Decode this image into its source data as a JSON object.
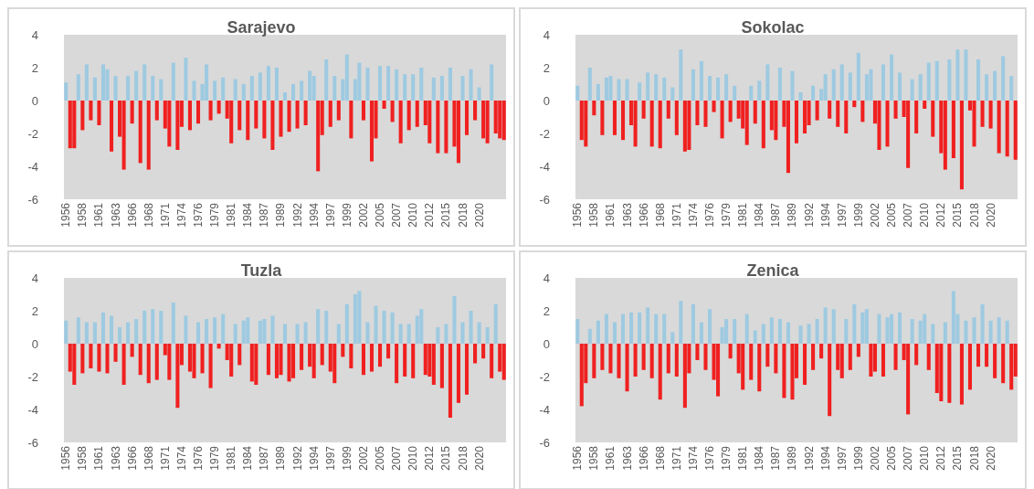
{
  "chart_data": [
    {
      "type": "bar",
      "title": "Sarajevo",
      "categories": [
        "1956",
        null,
        null,
        null,
        "1958",
        null,
        null,
        null,
        "1961",
        null,
        null,
        null,
        "1963",
        null,
        null,
        null,
        "1966",
        null,
        null,
        null,
        "1968",
        null,
        null,
        null,
        "1971",
        null,
        null,
        null,
        "1974",
        null,
        null,
        null,
        "1976",
        null,
        null,
        null,
        "1979",
        null,
        null,
        null,
        "1981",
        null,
        null,
        null,
        "1984",
        null,
        null,
        null,
        "1987",
        null,
        null,
        null,
        "1989",
        null,
        null,
        null,
        "1992",
        null,
        null,
        null,
        "1994",
        null,
        null,
        null,
        "1997",
        null,
        null,
        null,
        "1999",
        null,
        null,
        null,
        "2002",
        null,
        null,
        null,
        "2005",
        null,
        null,
        null,
        "2007",
        null,
        null,
        null,
        "2010",
        null,
        null,
        null,
        "2012",
        null,
        null,
        null,
        "2015",
        null,
        null,
        null,
        "2018",
        null,
        null,
        null,
        "2020",
        null,
        null,
        null,
        null,
        null,
        null
      ],
      "series": [
        {
          "color": "#9ecae1",
          "values": [
            1.1,
            null,
            null,
            1.6,
            null,
            2.2,
            null,
            1.4,
            null,
            2.2,
            1.9,
            null,
            1.5,
            null,
            null,
            1.5,
            null,
            1.8,
            null,
            2.2,
            null,
            1.5,
            null,
            1.3,
            null,
            null,
            2.3,
            null,
            null,
            2.6,
            null,
            1.2,
            null,
            1.0,
            2.2,
            null,
            1.2,
            null,
            1.4,
            null,
            null,
            1.3,
            null,
            1.0,
            null,
            1.5,
            null,
            1.7,
            null,
            2.1,
            null,
            2.0,
            null,
            0.5,
            null,
            1.0,
            null,
            1.2,
            null,
            1.8,
            1.5,
            null,
            null,
            2.5,
            null,
            1.5,
            null,
            1.3,
            2.8,
            null,
            1.3,
            2.3,
            null,
            2.0,
            null,
            null,
            2.1,
            null,
            2.1,
            null,
            1.9,
            null,
            1.6,
            null,
            1.6,
            null,
            2.0,
            null,
            null,
            1.4,
            null,
            1.5,
            null,
            2.0,
            null,
            null,
            1.5,
            null,
            1.9,
            null,
            0.8,
            null,
            null,
            2.2,
            null,
            null,
            null
          ]
        },
        {
          "color": "#f02020",
          "values": [
            null,
            -2.9,
            -2.9,
            null,
            -1.8,
            null,
            -1.2,
            null,
            -1.5,
            null,
            null,
            -3.1,
            null,
            -2.2,
            -4.2,
            null,
            -1.4,
            null,
            -3.8,
            null,
            -4.2,
            null,
            -1.2,
            null,
            -1.7,
            -2.8,
            null,
            -3.0,
            -1.6,
            null,
            -1.8,
            null,
            -1.4,
            null,
            null,
            -1.2,
            null,
            -0.8,
            null,
            -1.1,
            -2.6,
            null,
            -1.8,
            null,
            -2.4,
            null,
            -1.7,
            null,
            -2.3,
            null,
            -3.0,
            null,
            -2.2,
            null,
            -1.9,
            null,
            -1.7,
            null,
            -1.5,
            null,
            null,
            -4.3,
            -2.1,
            null,
            -1.6,
            null,
            -1.2,
            null,
            null,
            -2.3,
            null,
            null,
            -1.2,
            null,
            -3.7,
            -2.3,
            null,
            -0.5,
            null,
            -1.3,
            null,
            -2.6,
            null,
            -1.8,
            null,
            -1.6,
            null,
            -1.5,
            -2.6,
            null,
            -3.2,
            null,
            -3.2,
            null,
            -2.8,
            -3.8,
            null,
            -2.1,
            null,
            -1.2,
            null,
            -2.3,
            -2.6,
            null,
            -2.0,
            -2.3,
            -2.4
          ]
        }
      ],
      "ylim": [
        -6,
        4
      ],
      "yticks": [
        -6,
        -4,
        -2,
        0,
        2,
        4
      ]
    },
    {
      "type": "bar",
      "title": "Sokolac",
      "categories": [
        "1956",
        null,
        null,
        null,
        "1958",
        null,
        null,
        null,
        "1961",
        null,
        null,
        null,
        "1963",
        null,
        null,
        null,
        "1966",
        null,
        null,
        null,
        "1968",
        null,
        null,
        null,
        "1971",
        null,
        null,
        null,
        "1974",
        null,
        null,
        null,
        "1976",
        null,
        null,
        null,
        "1979",
        null,
        null,
        null,
        "1981",
        null,
        null,
        null,
        "1984",
        null,
        null,
        null,
        "1987",
        null,
        null,
        null,
        "1989",
        null,
        null,
        null,
        "1992",
        null,
        null,
        null,
        "1994",
        null,
        null,
        null,
        "1997",
        null,
        null,
        null,
        "1999",
        null,
        null,
        null,
        "2002",
        null,
        null,
        null,
        "2005",
        null,
        null,
        null,
        "2007",
        null,
        null,
        null,
        "2010",
        null,
        null,
        null,
        "2012",
        null,
        null,
        null,
        "2015",
        null,
        null,
        null,
        "2018",
        null,
        null,
        null,
        "2020",
        null,
        null,
        null,
        null,
        null,
        null
      ],
      "series": [
        {
          "color": "#9ecae1",
          "values": [
            0.9,
            null,
            null,
            2.0,
            null,
            1.0,
            null,
            1.4,
            1.5,
            null,
            1.3,
            null,
            1.3,
            null,
            null,
            1.1,
            null,
            1.7,
            null,
            1.6,
            null,
            1.4,
            null,
            0.8,
            null,
            3.1,
            null,
            null,
            1.9,
            null,
            2.4,
            null,
            1.5,
            null,
            1.4,
            null,
            1.6,
            null,
            0.9,
            null,
            null,
            null,
            0.9,
            null,
            1.2,
            null,
            2.2,
            null,
            null,
            2.0,
            null,
            null,
            1.8,
            null,
            0.5,
            null,
            null,
            0.9,
            null,
            0.7,
            1.6,
            null,
            1.9,
            null,
            2.2,
            null,
            1.7,
            null,
            2.9,
            null,
            1.6,
            1.9,
            null,
            null,
            2.2,
            null,
            2.8,
            null,
            1.7,
            null,
            null,
            1.3,
            null,
            1.6,
            null,
            2.3,
            null,
            2.4,
            null,
            null,
            2.5,
            null,
            3.1,
            null,
            3.1,
            null,
            null,
            2.5,
            null,
            1.6,
            null,
            1.8,
            null,
            2.7,
            null,
            1.5,
            null
          ]
        },
        {
          "color": "#f02020",
          "values": [
            null,
            -2.4,
            -2.8,
            null,
            -0.9,
            null,
            -2.1,
            null,
            null,
            -2.1,
            null,
            -2.4,
            null,
            -1.5,
            -2.8,
            null,
            -1.1,
            null,
            -2.8,
            null,
            -2.9,
            null,
            -1.1,
            null,
            -2.1,
            null,
            -3.1,
            -3.0,
            null,
            -1.5,
            null,
            -1.6,
            null,
            -0.7,
            null,
            -2.3,
            null,
            -1.3,
            null,
            -1.1,
            -1.7,
            -2.7,
            null,
            -1.4,
            null,
            -2.9,
            null,
            -1.8,
            -2.4,
            null,
            -1.6,
            -4.4,
            null,
            -2.6,
            null,
            -2.0,
            -1.5,
            null,
            -1.2,
            null,
            null,
            -1.1,
            null,
            -1.6,
            null,
            -2.0,
            null,
            -0.4,
            null,
            -1.3,
            null,
            null,
            -1.4,
            -3.0,
            null,
            -2.8,
            null,
            -1.1,
            null,
            -1.0,
            -4.1,
            null,
            -2.0,
            null,
            -0.5,
            null,
            -2.2,
            null,
            -3.2,
            -4.2,
            null,
            -3.5,
            null,
            -5.4,
            null,
            -0.6,
            -2.8,
            null,
            -1.6,
            null,
            -1.7,
            null,
            -3.2,
            null,
            -3.4,
            null,
            -3.6
          ]
        }
      ],
      "ylim": [
        -6,
        4
      ],
      "yticks": [
        -6,
        -4,
        -2,
        0,
        2,
        4
      ]
    },
    {
      "type": "bar",
      "title": "Tuzla",
      "categories": [
        "1956",
        null,
        null,
        null,
        "1958",
        null,
        null,
        null,
        "1961",
        null,
        null,
        null,
        "1963",
        null,
        null,
        null,
        "1966",
        null,
        null,
        null,
        "1968",
        null,
        null,
        null,
        "1971",
        null,
        null,
        null,
        "1974",
        null,
        null,
        null,
        "1976",
        null,
        null,
        null,
        "1979",
        null,
        null,
        null,
        "1981",
        null,
        null,
        null,
        "1984",
        null,
        null,
        null,
        "1987",
        null,
        null,
        null,
        "1989",
        null,
        null,
        null,
        "1992",
        null,
        null,
        null,
        "1994",
        null,
        null,
        null,
        "1997",
        null,
        null,
        null,
        "1999",
        null,
        null,
        null,
        "2002",
        null,
        null,
        null,
        "2005",
        null,
        null,
        null,
        "2007",
        null,
        null,
        null,
        "2010",
        null,
        null,
        null,
        "2012",
        null,
        null,
        null,
        "2015",
        null,
        null,
        null,
        "2018",
        null,
        null,
        null,
        "2020",
        null,
        null,
        null,
        null,
        null,
        null
      ],
      "series": [
        {
          "color": "#9ecae1",
          "values": [
            1.4,
            null,
            null,
            1.6,
            null,
            1.3,
            null,
            1.3,
            null,
            1.9,
            null,
            1.7,
            null,
            1.0,
            null,
            1.3,
            null,
            1.5,
            null,
            2.0,
            null,
            2.1,
            null,
            2.0,
            null,
            null,
            2.5,
            null,
            null,
            1.7,
            null,
            null,
            1.3,
            null,
            1.5,
            null,
            1.6,
            null,
            1.8,
            null,
            null,
            1.2,
            null,
            1.4,
            1.6,
            null,
            null,
            1.4,
            1.5,
            null,
            1.7,
            null,
            null,
            1.2,
            null,
            null,
            1.2,
            null,
            1.3,
            null,
            null,
            2.1,
            null,
            2.0,
            null,
            null,
            1.2,
            null,
            2.4,
            null,
            3.0,
            3.2,
            null,
            1.3,
            null,
            2.3,
            null,
            2.0,
            null,
            1.9,
            null,
            1.2,
            null,
            1.2,
            null,
            1.7,
            2.1,
            null,
            null,
            null,
            1.0,
            null,
            1.2,
            null,
            2.9,
            null,
            1.3,
            null,
            2.0,
            null,
            1.3,
            null,
            1.0,
            null,
            2.4,
            null,
            null
          ]
        },
        {
          "color": "#f02020",
          "values": [
            null,
            -1.7,
            -2.5,
            null,
            -1.8,
            null,
            -1.5,
            null,
            -1.7,
            null,
            -1.8,
            null,
            -1.1,
            null,
            -2.5,
            null,
            -0.8,
            null,
            -1.9,
            null,
            -2.4,
            null,
            -2.2,
            null,
            -0.7,
            -2.2,
            null,
            -3.9,
            -1.3,
            null,
            -1.7,
            -2.1,
            null,
            -1.8,
            null,
            -2.7,
            null,
            -0.3,
            null,
            -1.0,
            -2.0,
            null,
            -1.3,
            null,
            null,
            -2.3,
            -2.5,
            null,
            null,
            -1.9,
            null,
            -2.1,
            -1.9,
            null,
            -2.3,
            -2.1,
            null,
            -1.6,
            null,
            -1.4,
            -2.1,
            null,
            -1.3,
            null,
            -1.7,
            -2.4,
            null,
            -0.8,
            null,
            -1.5,
            null,
            null,
            -1.9,
            null,
            -1.7,
            null,
            -1.4,
            null,
            -0.9,
            null,
            -2.4,
            null,
            -2.0,
            null,
            -2.1,
            null,
            null,
            -1.9,
            -2.0,
            -2.5,
            null,
            -2.7,
            null,
            -4.5,
            null,
            -3.6,
            null,
            -3.1,
            null,
            -1.2,
            null,
            -0.9,
            null,
            -2.1,
            null,
            -1.7,
            -2.2
          ]
        }
      ],
      "ylim": [
        -6,
        4
      ],
      "yticks": [
        -6,
        -4,
        -2,
        0,
        2,
        4
      ]
    },
    {
      "type": "bar",
      "title": "Zenica",
      "categories": [
        "1956",
        null,
        null,
        null,
        "1958",
        null,
        null,
        null,
        "1961",
        null,
        null,
        null,
        "1963",
        null,
        null,
        null,
        "1966",
        null,
        null,
        null,
        "1968",
        null,
        null,
        null,
        "1971",
        null,
        null,
        null,
        "1974",
        null,
        null,
        null,
        "1976",
        null,
        null,
        null,
        "1979",
        null,
        null,
        null,
        "1981",
        null,
        null,
        null,
        "1984",
        null,
        null,
        null,
        "1987",
        null,
        null,
        null,
        "1989",
        null,
        null,
        null,
        "1992",
        null,
        null,
        null,
        "1994",
        null,
        null,
        null,
        "1997",
        null,
        null,
        null,
        "1999",
        null,
        null,
        null,
        "2002",
        null,
        null,
        null,
        "2005",
        null,
        null,
        null,
        "2007",
        null,
        null,
        null,
        "2010",
        null,
        null,
        null,
        "2012",
        null,
        null,
        null,
        "2015",
        null,
        null,
        null,
        "2018",
        null,
        null,
        null,
        "2020",
        null,
        null,
        null,
        null,
        null,
        null
      ],
      "series": [
        {
          "color": "#9ecae1",
          "values": [
            1.5,
            null,
            null,
            0.9,
            null,
            1.4,
            null,
            1.8,
            null,
            1.3,
            null,
            1.8,
            null,
            1.9,
            null,
            1.9,
            null,
            2.2,
            null,
            1.8,
            null,
            1.8,
            null,
            0.7,
            null,
            2.6,
            null,
            null,
            2.4,
            null,
            1.3,
            null,
            2.1,
            null,
            null,
            1.0,
            1.5,
            null,
            1.5,
            null,
            null,
            1.8,
            null,
            0.8,
            null,
            1.2,
            null,
            1.6,
            null,
            1.5,
            null,
            1.3,
            null,
            null,
            1.1,
            null,
            1.2,
            null,
            1.5,
            null,
            2.2,
            null,
            2.1,
            null,
            null,
            1.5,
            null,
            2.4,
            null,
            1.9,
            2.1,
            null,
            null,
            1.8,
            null,
            1.6,
            1.8,
            null,
            1.9,
            null,
            null,
            1.5,
            null,
            1.4,
            1.8,
            null,
            1.2,
            null,
            null,
            1.3,
            null,
            3.2,
            1.8,
            null,
            1.4,
            null,
            1.6,
            null,
            2.4,
            null,
            1.4,
            null,
            1.6,
            null,
            1.4,
            null,
            null
          ]
        },
        {
          "color": "#f02020",
          "values": [
            null,
            -3.8,
            -2.4,
            null,
            -2.1,
            null,
            -1.6,
            null,
            -1.8,
            null,
            -2.1,
            null,
            -2.9,
            null,
            -2.0,
            null,
            -1.6,
            null,
            -2.1,
            null,
            -3.4,
            null,
            -1.8,
            null,
            -2.0,
            null,
            -3.9,
            -1.8,
            null,
            -1.0,
            null,
            -1.6,
            null,
            -2.2,
            -3.2,
            null,
            null,
            -0.9,
            null,
            -1.8,
            -2.8,
            null,
            -2.2,
            null,
            -2.9,
            null,
            -1.4,
            null,
            -1.8,
            null,
            -3.3,
            null,
            -3.4,
            -2.1,
            null,
            -2.5,
            null,
            -1.6,
            null,
            -0.9,
            null,
            -4.4,
            null,
            -1.6,
            -2.1,
            null,
            -1.6,
            null,
            -0.8,
            null,
            null,
            -2.0,
            -1.7,
            null,
            -2.0,
            null,
            null,
            -1.6,
            null,
            -1.0,
            -4.3,
            null,
            -1.3,
            null,
            null,
            -1.6,
            null,
            -3.0,
            -3.5,
            null,
            -3.6,
            null,
            null,
            -3.7,
            null,
            -2.8,
            null,
            -1.4,
            null,
            -1.4,
            null,
            -2.1,
            null,
            -2.4,
            null,
            -2.8,
            -2.0
          ]
        }
      ],
      "ylim": [
        -6,
        4
      ],
      "yticks": [
        -6,
        -4,
        -2,
        0,
        2,
        4
      ]
    }
  ]
}
